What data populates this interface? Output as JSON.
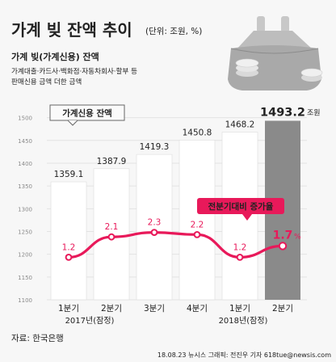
{
  "header": {
    "title": "가계 빚 잔액 추이",
    "unit": "(단위: 조원, %)",
    "subtitle": "가계 빚(가계신용) 잔액",
    "desc_line1": "가계대출·카드사·백화점·자동차회사·할부 등",
    "desc_line2": "판매신용 금액 더한 금액"
  },
  "footer": {
    "source": "자료: 한국은행",
    "credit": "18.08.23  뉴시스 그래픽: 전진우 기자  618tue@newsis.com"
  },
  "colors": {
    "bar": "#ffffff",
    "bar_highlight": "#8a8a8a",
    "line": "#e8195a",
    "text": "#222222",
    "grid": "#e3e3e3"
  },
  "chart_data": {
    "type": "bar",
    "categories": [
      "1분기",
      "2분기",
      "3분기",
      "4분기",
      "1분기",
      "2분기"
    ],
    "year_labels": [
      "2017년(잠정)",
      "2018년(잠정)"
    ],
    "y_ticks": [
      1100,
      1150,
      1200,
      1250,
      1300,
      1350,
      1400,
      1450,
      1500
    ],
    "ylim": [
      1100,
      1510
    ],
    "series": [
      {
        "name": "가계신용 잔액",
        "type": "bar",
        "values": [
          1359.1,
          1387.9,
          1419.3,
          1450.8,
          1468.2,
          1493.2
        ],
        "value_labels": [
          "1359.1",
          "1387.9",
          "1419.3",
          "1450.8",
          "1468.2",
          "1493.2"
        ],
        "last_unit": "조원"
      },
      {
        "name": "전분기대비 증가율",
        "type": "line",
        "values": [
          1.2,
          2.1,
          2.3,
          2.2,
          1.2,
          1.7
        ],
        "value_labels": [
          "1.2",
          "2.1",
          "2.3",
          "2.2",
          "1.2",
          "1.7"
        ],
        "last_unit": "%"
      }
    ]
  }
}
